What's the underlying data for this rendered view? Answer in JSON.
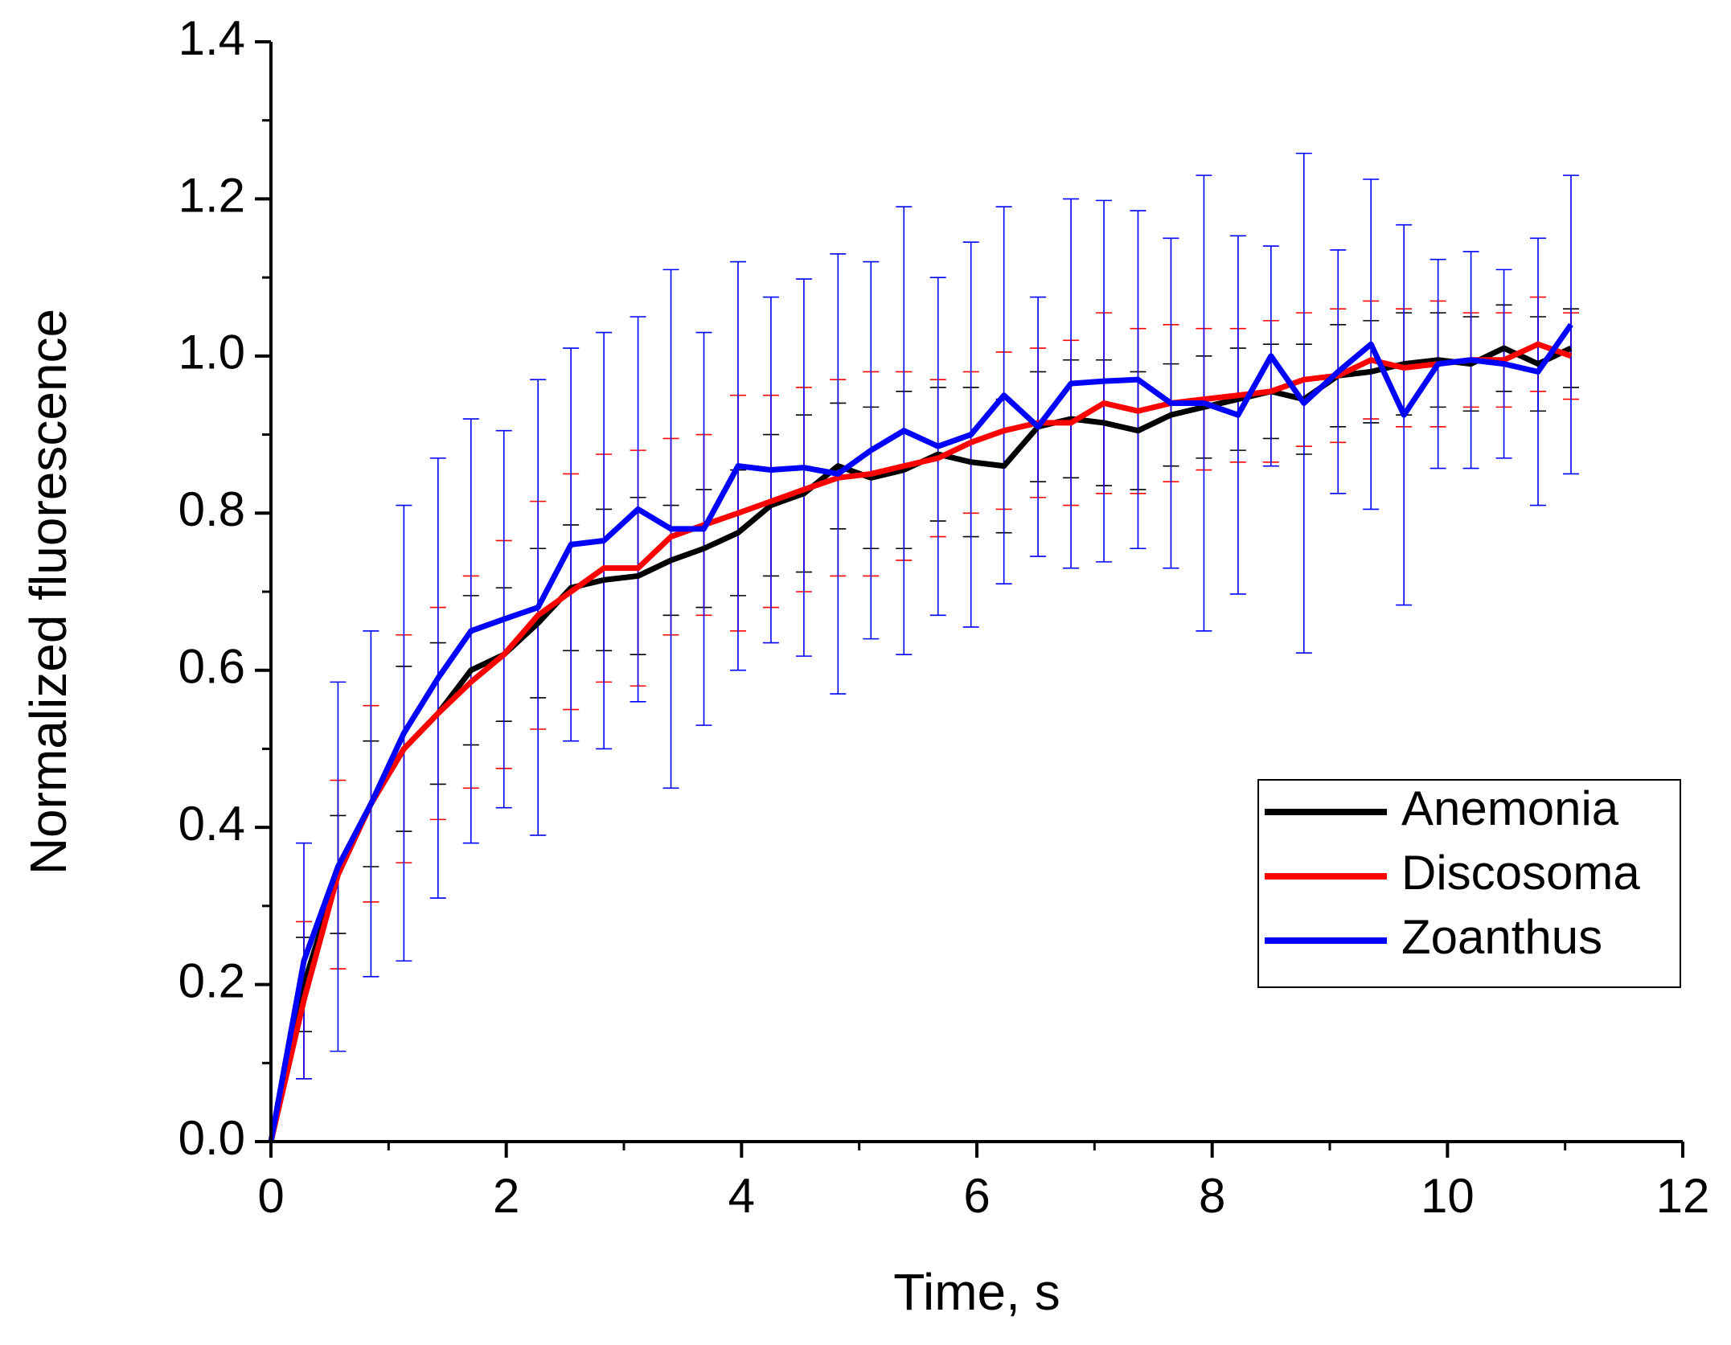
{
  "chart_data": {
    "type": "line",
    "xlabel": "Time, s",
    "ylabel": "Normalized fluorescence",
    "xlim": [
      0,
      12
    ],
    "xticks": [
      0,
      2,
      4,
      6,
      8,
      10,
      12
    ],
    "ylim": [
      0,
      1.4
    ],
    "yticks": [
      {
        "value": 0,
        "label": "0.0"
      },
      0.2,
      0.4,
      0.6,
      0.8,
      {
        "value": 1,
        "label": "1.0"
      },
      1.2,
      1.4
    ],
    "grid": false,
    "legend": "lower right",
    "x": [
      0,
      0.28,
      0.57,
      0.85,
      1.13,
      1.42,
      1.7,
      1.98,
      2.27,
      2.55,
      2.83,
      3.12,
      3.4,
      3.68,
      3.97,
      4.25,
      4.53,
      4.82,
      5.1,
      5.38,
      5.67,
      5.95,
      6.23,
      6.52,
      6.8,
      7.08,
      7.37,
      7.65,
      7.93,
      8.22,
      8.5,
      8.78,
      9.07,
      9.35,
      9.63,
      9.92,
      10.2,
      10.48,
      10.77,
      11.05
    ],
    "series": [
      {
        "name": "Anemonia",
        "color": "#000000",
        "values": [
          0,
          0.2,
          0.34,
          0.43,
          0.5,
          0.545,
          0.6,
          0.62,
          0.66,
          0.705,
          0.715,
          0.72,
          0.74,
          0.755,
          0.775,
          0.81,
          0.825,
          0.86,
          0.845,
          0.855,
          0.875,
          0.865,
          0.86,
          0.91,
          0.92,
          0.915,
          0.905,
          0.925,
          0.935,
          0.945,
          0.955,
          0.945,
          0.975,
          0.98,
          0.99,
          0.995,
          0.99,
          1.01,
          0.99,
          1.01
        ],
        "errors": [
          0,
          0.06,
          0.075,
          0.08,
          0.105,
          0.09,
          0.095,
          0.085,
          0.095,
          0.08,
          0.09,
          0.1,
          0.07,
          0.075,
          0.08,
          0.09,
          0.1,
          0.08,
          0.09,
          0.1,
          0.085,
          0.095,
          0.085,
          0.07,
          0.075,
          0.08,
          0.075,
          0.065,
          0.065,
          0.065,
          0.06,
          0.07,
          0.065,
          0.065,
          0.065,
          0.06,
          0.06,
          0.055,
          0.06,
          0.05
        ]
      },
      {
        "name": "Discosoma",
        "color": "#ff0000",
        "values": [
          0,
          0.18,
          0.34,
          0.43,
          0.5,
          0.545,
          0.585,
          0.62,
          0.67,
          0.7,
          0.73,
          0.73,
          0.77,
          0.785,
          0.8,
          0.815,
          0.83,
          0.845,
          0.85,
          0.86,
          0.87,
          0.89,
          0.905,
          0.915,
          0.915,
          0.94,
          0.93,
          0.94,
          0.945,
          0.95,
          0.955,
          0.97,
          0.975,
          0.995,
          0.985,
          0.99,
          0.995,
          0.995,
          1.015,
          1.0
        ],
        "errors": [
          0,
          0.1,
          0.12,
          0.125,
          0.145,
          0.135,
          0.135,
          0.145,
          0.145,
          0.15,
          0.145,
          0.15,
          0.125,
          0.115,
          0.15,
          0.135,
          0.13,
          0.125,
          0.13,
          0.12,
          0.1,
          0.09,
          0.1,
          0.095,
          0.105,
          0.115,
          0.105,
          0.1,
          0.09,
          0.085,
          0.09,
          0.085,
          0.085,
          0.075,
          0.075,
          0.08,
          0.06,
          0.06,
          0.06,
          0.055
        ]
      },
      {
        "name": "Zoanthus",
        "color": "#0000ff",
        "values": [
          0,
          0.23,
          0.35,
          0.43,
          0.52,
          0.59,
          0.65,
          0.665,
          0.68,
          0.76,
          0.765,
          0.805,
          0.78,
          0.78,
          0.86,
          0.855,
          0.858,
          0.85,
          0.88,
          0.905,
          0.885,
          0.9,
          0.95,
          0.91,
          0.965,
          0.968,
          0.97,
          0.94,
          0.94,
          0.925,
          1.0,
          0.94,
          0.98,
          1.015,
          0.925,
          0.99,
          0.995,
          0.99,
          0.98,
          1.04
        ],
        "errors": [
          0,
          0.15,
          0.235,
          0.22,
          0.29,
          0.28,
          0.27,
          0.24,
          0.29,
          0.25,
          0.265,
          0.245,
          0.33,
          0.25,
          0.26,
          0.22,
          0.24,
          0.28,
          0.24,
          0.285,
          0.215,
          0.245,
          0.24,
          0.165,
          0.235,
          0.23,
          0.215,
          0.21,
          0.29,
          0.228,
          0.14,
          0.318,
          0.155,
          0.21,
          0.242,
          0.133,
          0.138,
          0.12,
          0.17,
          0.19
        ]
      }
    ]
  }
}
